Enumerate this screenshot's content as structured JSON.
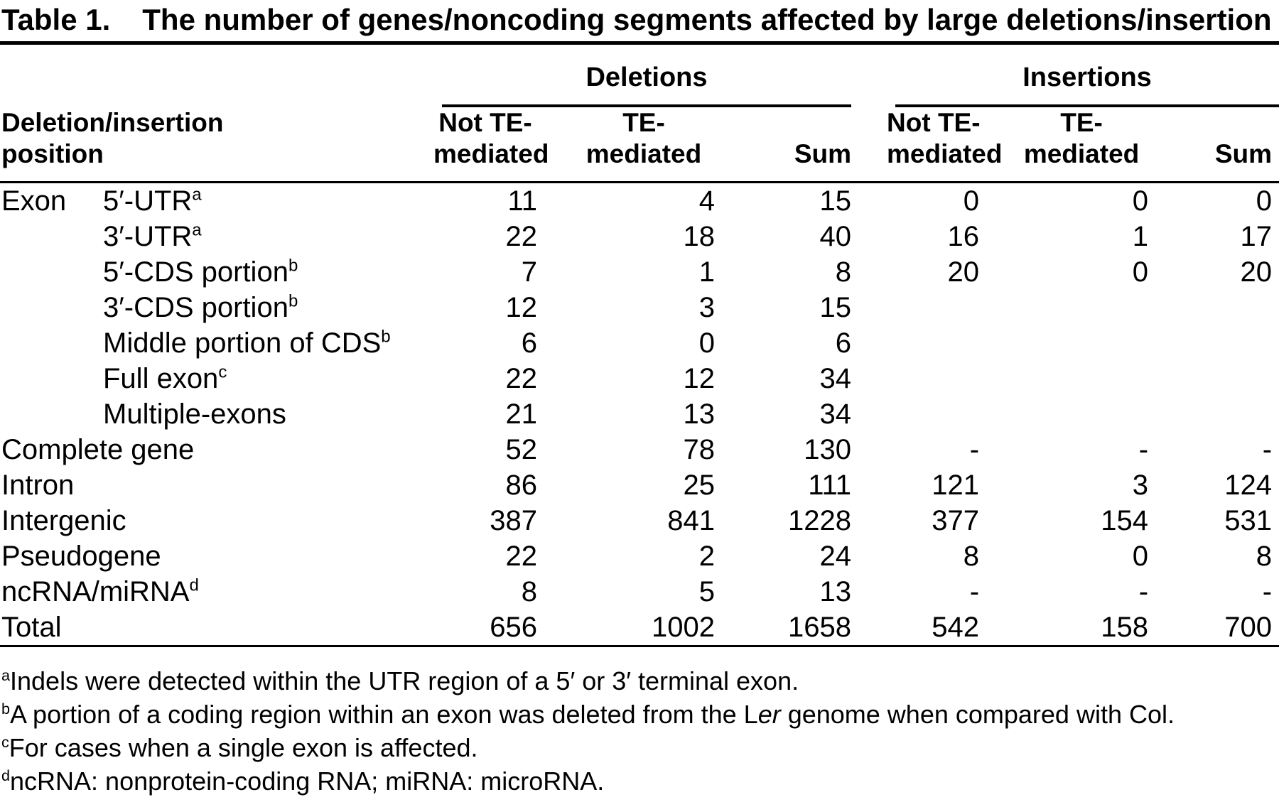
{
  "colors": {
    "text": "#000000",
    "background": "#ffffff"
  },
  "title": {
    "label": "Table 1.",
    "text": "The number of genes/noncoding segments affected by large deletions/insertion"
  },
  "table": {
    "col_groups": [
      {
        "label": "Deletions"
      },
      {
        "label": "Insertions"
      }
    ],
    "row_header": {
      "line1": "Deletion/insertion",
      "line2": "position"
    },
    "sub_headers": [
      {
        "line1": "Not TE-",
        "line2": "mediated"
      },
      {
        "line1": "TE-",
        "line2": "mediated"
      },
      {
        "line1": "Sum",
        "line2": ""
      }
    ],
    "rows": [
      {
        "group": "Exon",
        "label": "5′-UTR",
        "sup": "a",
        "values": [
          "11",
          "4",
          "15",
          "0",
          "0",
          "0"
        ]
      },
      {
        "group": "",
        "label": "3′-UTR",
        "sup": "a",
        "values": [
          "22",
          "18",
          "40",
          "16",
          "1",
          "17"
        ]
      },
      {
        "group": "",
        "label": "5′-CDS portion",
        "sup": "b",
        "values": [
          "7",
          "1",
          "8",
          "20",
          "0",
          "20"
        ]
      },
      {
        "group": "",
        "label": "3′-CDS portion",
        "sup": "b",
        "values": [
          "12",
          "3",
          "15",
          "",
          "",
          ""
        ]
      },
      {
        "group": "",
        "label": "Middle portion of CDS",
        "sup": "b",
        "values": [
          "6",
          "0",
          "6",
          "",
          "",
          ""
        ]
      },
      {
        "group": "",
        "label": "Full exon",
        "sup": "c",
        "values": [
          "22",
          "12",
          "34",
          "",
          "",
          ""
        ]
      },
      {
        "group": "",
        "label": "Multiple-exons",
        "sup": "",
        "values": [
          "21",
          "13",
          "34",
          "",
          "",
          ""
        ]
      },
      {
        "group": "Complete gene",
        "label": "",
        "sup": "",
        "values": [
          "52",
          "78",
          "130",
          "-",
          "-",
          "-"
        ]
      },
      {
        "group": "Intron",
        "label": "",
        "sup": "",
        "values": [
          "86",
          "25",
          "111",
          "121",
          "3",
          "124"
        ]
      },
      {
        "group": "Intergenic",
        "label": "",
        "sup": "",
        "values": [
          "387",
          "841",
          "1228",
          "377",
          "154",
          "531"
        ]
      },
      {
        "group": "Pseudogene",
        "label": "",
        "sup": "",
        "values": [
          "22",
          "2",
          "24",
          "8",
          "0",
          "8"
        ]
      },
      {
        "group": "ncRNA/miRNA",
        "label": "",
        "sup": "d",
        "values": [
          "8",
          "5",
          "13",
          "-",
          "-",
          "-"
        ]
      },
      {
        "group": "Total",
        "label": "",
        "sup": "",
        "values": [
          "656",
          "1002",
          "1658",
          "542",
          "158",
          "700"
        ]
      }
    ]
  },
  "footnotes": [
    {
      "sup": "a",
      "parts": [
        {
          "text": "Indels were detected within the UTR region of a 5′ or 3′ terminal exon."
        }
      ]
    },
    {
      "sup": "b",
      "parts": [
        {
          "text": "A portion of a coding region within an exon was deleted from the L"
        },
        {
          "text": "er",
          "italic": true
        },
        {
          "text": " genome when compared with Col."
        }
      ]
    },
    {
      "sup": "c",
      "parts": [
        {
          "text": "For cases when a single exon is affected."
        }
      ]
    },
    {
      "sup": "d",
      "parts": [
        {
          "text": "ncRNA: nonprotein-coding RNA; miRNA: microRNA."
        }
      ]
    }
  ]
}
